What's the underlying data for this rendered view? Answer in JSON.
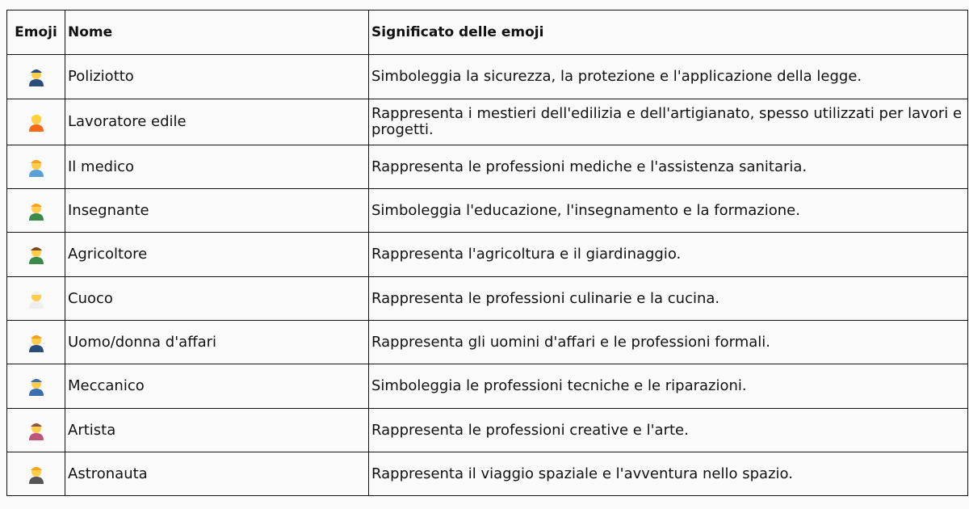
{
  "table": {
    "headers": [
      "Emoji",
      "Nome",
      "Significato delle emoji"
    ],
    "rows": [
      {
        "emoji": "👮",
        "icon": "police-officer",
        "hat": "#2a4d7a",
        "body": "#2a4d7a",
        "name": "Poliziotto",
        "meaning": "Simboleggia la sicurezza, la protezione e l'applicazione della legge."
      },
      {
        "emoji": "👷",
        "icon": "construction-worker",
        "hat": "#ffd42a",
        "body": "#f26a1b",
        "name": "Lavoratore edile",
        "meaning": "Rappresenta i mestieri dell'edilizia e dell'artigianato, spesso utilizzati per lavori e progetti."
      },
      {
        "emoji": "🧑‍⚕️",
        "icon": "health-worker",
        "hat": "#f4a31c",
        "body": "#5aa0d6",
        "name": "Il medico",
        "meaning": "Rappresenta le professioni mediche e l'assistenza sanitaria."
      },
      {
        "emoji": "🧑‍🏫",
        "icon": "teacher",
        "hat": "#f4a31c",
        "body": "#3b8a4a",
        "name": "Insegnante",
        "meaning": "Simboleggia l'educazione, l'insegnamento e la formazione."
      },
      {
        "emoji": "🧑‍🌾",
        "icon": "farmer",
        "hat": "#7a4a22",
        "body": "#3b8a4a",
        "name": "Agricoltore",
        "meaning": "Rappresenta l'agricoltura e il giardinaggio."
      },
      {
        "emoji": "🧑‍🍳",
        "icon": "cook",
        "hat": "#eeeeee",
        "body": "#eeeeee",
        "name": "Cuoco",
        "meaning": "Rappresenta le professioni culinarie e la cucina."
      },
      {
        "emoji": "🧑‍💼",
        "icon": "office-worker",
        "hat": "#f4a31c",
        "body": "#2a4d7a",
        "name": "Uomo/donna d'affari",
        "meaning": "Rappresenta gli uomini d'affari e le professioni formali."
      },
      {
        "emoji": "🧑‍🔧",
        "icon": "mechanic",
        "hat": "#3a6fb0",
        "body": "#3a6fb0",
        "name": "Meccanico",
        "meaning": "Simboleggia le professioni tecniche e le riparazioni."
      },
      {
        "emoji": "🧑‍🎨",
        "icon": "artist",
        "hat": "#8a5a3a",
        "body": "#c0557a",
        "name": "Artista",
        "meaning": "Rappresenta le professioni creative e l'arte."
      },
      {
        "emoji": "🧑‍🚀",
        "icon": "astronaut",
        "hat": "#f4a31c",
        "body": "#555555",
        "name": "Astronauta",
        "meaning": "Rappresenta il viaggio spaziale e l'avventura nello spazio."
      }
    ]
  }
}
